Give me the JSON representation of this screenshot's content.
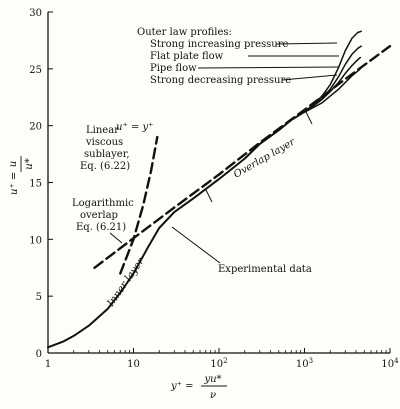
{
  "chart_data": {
    "type": "line",
    "x_scale": "log",
    "xlim": [
      1,
      10000
    ],
    "ylim": [
      0,
      30
    ],
    "grid": false,
    "x_ticks": [
      {
        "value": 1,
        "base": "1",
        "exp": ""
      },
      {
        "value": 10,
        "base": "10",
        "exp": ""
      },
      {
        "value": 100,
        "base": "10",
        "exp": "2"
      },
      {
        "value": 1000,
        "base": "10",
        "exp": "3"
      },
      {
        "value": 10000,
        "base": "10",
        "exp": "4"
      }
    ],
    "y_ticks": [
      {
        "value": 0,
        "label": "0"
      },
      {
        "value": 5,
        "label": "5"
      },
      {
        "value": 10,
        "label": "10"
      },
      {
        "value": 15,
        "label": "15"
      },
      {
        "value": 20,
        "label": "20"
      },
      {
        "value": 25,
        "label": "25"
      },
      {
        "value": 30,
        "label": "30"
      }
    ],
    "xlabel": {
      "lhs": "y⁺ =",
      "num": "yu*",
      "den": "ν"
    },
    "ylabel": {
      "lhs": "u⁺ =",
      "num": "u",
      "den": "u*"
    },
    "series": [
      {
        "name": "Experimental data",
        "style": "solid",
        "x": [
          1,
          1.5,
          2,
          3,
          5,
          7,
          10,
          15,
          20,
          30,
          50,
          100,
          200,
          300,
          500,
          700,
          900
        ],
        "y": [
          0.5,
          1.0,
          1.5,
          2.4,
          3.9,
          5.3,
          7.0,
          9.4,
          11.0,
          12.4,
          13.6,
          15.3,
          17.1,
          18.4,
          19.6,
          20.5,
          21.0
        ]
      },
      {
        "name": "Linear viscous sublayer",
        "style": "dashed",
        "x": [
          7,
          10,
          13,
          16,
          19
        ],
        "y": [
          7,
          10,
          13,
          16,
          19
        ]
      },
      {
        "name": "Logarithmic overlap",
        "style": "dashed",
        "x": [
          3.5,
          10,
          30,
          100,
          300,
          1000,
          3000,
          10000
        ],
        "y": [
          7.5,
          10.1,
          12.8,
          15.7,
          18.5,
          21.4,
          24.1,
          27.0
        ]
      },
      {
        "name": "Strong increasing pressure",
        "style": "solid",
        "x": [
          900,
          1200,
          1600,
          2000,
          2500,
          3000,
          3600,
          4200,
          4600
        ],
        "y": [
          21.0,
          21.7,
          22.6,
          23.6,
          25.1,
          26.6,
          27.7,
          28.2,
          28.3
        ]
      },
      {
        "name": "Flat plate flow",
        "style": "solid",
        "x": [
          900,
          1200,
          1600,
          2000,
          2500,
          3000,
          3600,
          4200,
          4600
        ],
        "y": [
          21.0,
          21.6,
          22.4,
          23.2,
          24.3,
          25.4,
          26.3,
          26.8,
          27.0
        ]
      },
      {
        "name": "Pipe flow",
        "style": "solid",
        "x": [
          900,
          1200,
          1600,
          2000,
          2500,
          3000,
          3600,
          4200,
          4500
        ],
        "y": [
          21.0,
          21.6,
          22.3,
          23.0,
          23.8,
          24.6,
          25.3,
          25.8,
          26.0
        ]
      },
      {
        "name": "Strong decreasing pressure",
        "style": "solid",
        "x": [
          900,
          1200,
          1600,
          2000,
          2500,
          3000,
          3600,
          4200,
          4500
        ],
        "y": [
          21.0,
          21.5,
          22.0,
          22.6,
          23.2,
          23.8,
          24.4,
          24.8,
          25.0
        ]
      }
    ],
    "annotations": {
      "outer_law_title": "Outer law profiles:",
      "strong_increasing": "Strong increasing pressure",
      "flat_plate": "Flat plate flow",
      "pipe_flow": "Pipe flow",
      "strong_decreasing": "Strong decreasing pressure",
      "linear_eq": "u⁺ = y⁺",
      "linear_l1": "Linear",
      "linear_l2": "viscous",
      "linear_l3": "sublayer,",
      "linear_l4": "Eq. (6.22)",
      "log_l1": "Logarithmic",
      "log_l2": "overlap",
      "log_l3": "Eq. (6.21)",
      "overlap_layer": "Overlap layer",
      "inner_layer": "Inner layer",
      "experimental": "Experimental data"
    }
  }
}
